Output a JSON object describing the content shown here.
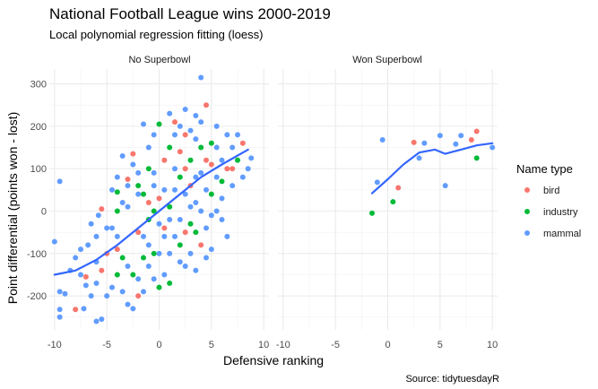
{
  "chart_data": {
    "type": "scatter",
    "title": "National Football League wins 2000-2019",
    "subtitle": "Local polynomial regression fitting (loess)",
    "xlabel": "Defensive ranking",
    "ylabel": "Point differential (points won - lost)",
    "caption": "Source: tidytuesdayR",
    "xlim": [
      -10.5,
      10.5
    ],
    "ylim": [
      -280,
      335
    ],
    "x_ticks": [
      -10,
      -5,
      0,
      5,
      10
    ],
    "y_ticks": [
      -200,
      -100,
      0,
      100,
      200,
      300
    ],
    "grid": true,
    "legend": {
      "title": "Name type",
      "position": "right",
      "entries": [
        {
          "key": "bird",
          "label": "bird",
          "color": "#f8766d"
        },
        {
          "key": "industry",
          "label": "industry",
          "color": "#00ba38"
        },
        {
          "key": "mammal",
          "label": "mammal",
          "color": "#619cff"
        }
      ]
    },
    "trend_color": "#3366ff",
    "facets": [
      {
        "label": "No Superbowl",
        "trend": [
          [
            -10,
            -150
          ],
          [
            -8,
            -140
          ],
          [
            -6,
            -115
          ],
          [
            -4,
            -80
          ],
          [
            -2,
            -40
          ],
          [
            0,
            0
          ],
          [
            2,
            40
          ],
          [
            4,
            80
          ],
          [
            6,
            110
          ],
          [
            8.5,
            145
          ]
        ],
        "points": [
          {
            "x": -9.5,
            "y": 70,
            "g": "mammal"
          },
          {
            "x": -10,
            "y": -72,
            "g": "mammal"
          },
          {
            "x": -9.5,
            "y": -190,
            "g": "mammal"
          },
          {
            "x": -9,
            "y": -195,
            "g": "mammal"
          },
          {
            "x": -9.5,
            "y": -232,
            "g": "mammal"
          },
          {
            "x": -9.5,
            "y": -250,
            "g": "mammal"
          },
          {
            "x": -8,
            "y": -232,
            "g": "bird"
          },
          {
            "x": -7.2,
            "y": -230,
            "g": "mammal"
          },
          {
            "x": -8,
            "y": -110,
            "g": "mammal"
          },
          {
            "x": -7.5,
            "y": -150,
            "g": "mammal"
          },
          {
            "x": -7,
            "y": -175,
            "g": "mammal"
          },
          {
            "x": -6.5,
            "y": -30,
            "g": "mammal"
          },
          {
            "x": -6.8,
            "y": -80,
            "g": "mammal"
          },
          {
            "x": -6,
            "y": -120,
            "g": "mammal"
          },
          {
            "x": -6,
            "y": -260,
            "g": "mammal"
          },
          {
            "x": -5.5,
            "y": -255,
            "g": "mammal"
          },
          {
            "x": -7,
            "y": -155,
            "g": "bird"
          },
          {
            "x": -6,
            "y": -170,
            "g": "mammal"
          },
          {
            "x": -5.5,
            "y": -140,
            "g": "bird"
          },
          {
            "x": -5,
            "y": -100,
            "g": "bird"
          },
          {
            "x": -5.5,
            "y": 5,
            "g": "bird"
          },
          {
            "x": -5.8,
            "y": -10,
            "g": "mammal"
          },
          {
            "x": -4.5,
            "y": 50,
            "g": "mammal"
          },
          {
            "x": -4,
            "y": 45,
            "g": "industry"
          },
          {
            "x": -3.5,
            "y": 20,
            "g": "mammal"
          },
          {
            "x": -3,
            "y": 60,
            "g": "mammal"
          },
          {
            "x": -3,
            "y": 75,
            "g": "bird"
          },
          {
            "x": -2,
            "y": 60,
            "g": "industry"
          },
          {
            "x": -3.5,
            "y": 130,
            "g": "mammal"
          },
          {
            "x": -2.5,
            "y": 135,
            "g": "bird"
          },
          {
            "x": -1.5,
            "y": 205,
            "g": "mammal"
          },
          {
            "x": 0,
            "y": 205,
            "g": "industry"
          },
          {
            "x": -2.5,
            "y": 110,
            "g": "mammal"
          },
          {
            "x": -1,
            "y": 100,
            "g": "industry"
          },
          {
            "x": -2,
            "y": 40,
            "g": "mammal"
          },
          {
            "x": -1.5,
            "y": 40,
            "g": "industry"
          },
          {
            "x": -1,
            "y": 20,
            "g": "bird"
          },
          {
            "x": -0.5,
            "y": 60,
            "g": "mammal"
          },
          {
            "x": -4.5,
            "y": -40,
            "g": "mammal"
          },
          {
            "x": -4,
            "y": -60,
            "g": "mammal"
          },
          {
            "x": -4,
            "y": -90,
            "g": "bird"
          },
          {
            "x": -3.5,
            "y": -110,
            "g": "industry"
          },
          {
            "x": -3,
            "y": -130,
            "g": "mammal"
          },
          {
            "x": -2.5,
            "y": -150,
            "g": "industry"
          },
          {
            "x": -2,
            "y": -160,
            "g": "mammal"
          },
          {
            "x": -2,
            "y": -200,
            "g": "bird"
          },
          {
            "x": -2.5,
            "y": -230,
            "g": "mammal"
          },
          {
            "x": -1.5,
            "y": -110,
            "g": "industry"
          },
          {
            "x": -1,
            "y": -80,
            "g": "mammal"
          },
          {
            "x": -1,
            "y": -20,
            "g": "industry"
          },
          {
            "x": -0.5,
            "y": 0,
            "g": "industry"
          },
          {
            "x": 0,
            "y": -30,
            "g": "mammal"
          },
          {
            "x": 0,
            "y": 30,
            "g": "bird"
          },
          {
            "x": 0.5,
            "y": 50,
            "g": "mammal"
          },
          {
            "x": 0.5,
            "y": -60,
            "g": "mammal"
          },
          {
            "x": 0,
            "y": -100,
            "g": "mammal"
          },
          {
            "x": 0.5,
            "y": -150,
            "g": "mammal"
          },
          {
            "x": 1,
            "y": -170,
            "g": "industry"
          },
          {
            "x": 1,
            "y": -100,
            "g": "mammal"
          },
          {
            "x": 1,
            "y": 10,
            "g": "industry"
          },
          {
            "x": 1.5,
            "y": 50,
            "g": "mammal"
          },
          {
            "x": 1.5,
            "y": 100,
            "g": "mammal"
          },
          {
            "x": 1,
            "y": 150,
            "g": "industry"
          },
          {
            "x": 1.5,
            "y": 180,
            "g": "mammal"
          },
          {
            "x": 2,
            "y": 200,
            "g": "mammal"
          },
          {
            "x": 2,
            "y": 140,
            "g": "bird"
          },
          {
            "x": 2,
            "y": 80,
            "g": "industry"
          },
          {
            "x": 2.5,
            "y": 100,
            "g": "bird"
          },
          {
            "x": 2.5,
            "y": 40,
            "g": "mammal"
          },
          {
            "x": 2,
            "y": -20,
            "g": "mammal"
          },
          {
            "x": 2.5,
            "y": -50,
            "g": "bird"
          },
          {
            "x": 2,
            "y": -80,
            "g": "industry"
          },
          {
            "x": 2.5,
            "y": -130,
            "g": "mammal"
          },
          {
            "x": 3,
            "y": -100,
            "g": "mammal"
          },
          {
            "x": 3,
            "y": 10,
            "g": "mammal"
          },
          {
            "x": 3,
            "y": 60,
            "g": "bird"
          },
          {
            "x": 3,
            "y": 120,
            "g": "industry"
          },
          {
            "x": 3.5,
            "y": 170,
            "g": "mammal"
          },
          {
            "x": 3.5,
            "y": 225,
            "g": "mammal"
          },
          {
            "x": 4,
            "y": 315,
            "g": "mammal"
          },
          {
            "x": 4.5,
            "y": 250,
            "g": "bird"
          },
          {
            "x": 4,
            "y": 210,
            "g": "mammal"
          },
          {
            "x": 4,
            "y": 150,
            "g": "industry"
          },
          {
            "x": 4.5,
            "y": 120,
            "g": "bird"
          },
          {
            "x": 4,
            "y": 90,
            "g": "mammal"
          },
          {
            "x": 4.5,
            "y": 50,
            "g": "mammal"
          },
          {
            "x": 4,
            "y": 0,
            "g": "mammal"
          },
          {
            "x": 4.5,
            "y": -40,
            "g": "mammal"
          },
          {
            "x": 4,
            "y": -80,
            "g": "bird"
          },
          {
            "x": 3.5,
            "y": -50,
            "g": "industry"
          },
          {
            "x": 5,
            "y": -10,
            "g": "mammal"
          },
          {
            "x": 5,
            "y": 40,
            "g": "industry"
          },
          {
            "x": 5.5,
            "y": 80,
            "g": "mammal"
          },
          {
            "x": 5,
            "y": 110,
            "g": "bird"
          },
          {
            "x": 5.5,
            "y": 150,
            "g": "mammal"
          },
          {
            "x": 5.5,
            "y": 200,
            "g": "mammal"
          },
          {
            "x": 6,
            "y": 120,
            "g": "mammal"
          },
          {
            "x": 6,
            "y": 70,
            "g": "industry"
          },
          {
            "x": 6,
            "y": 30,
            "g": "mammal"
          },
          {
            "x": 6.5,
            "y": 100,
            "g": "bird"
          },
          {
            "x": 7,
            "y": 150,
            "g": "mammal"
          },
          {
            "x": 7.5,
            "y": 180,
            "g": "mammal"
          },
          {
            "x": 7.5,
            "y": 120,
            "g": "industry"
          },
          {
            "x": 8,
            "y": 80,
            "g": "mammal"
          },
          {
            "x": 8,
            "y": 160,
            "g": "bird"
          },
          {
            "x": 8.5,
            "y": 100,
            "g": "mammal"
          },
          {
            "x": 8.8,
            "y": 125,
            "g": "mammal"
          },
          {
            "x": 7,
            "y": 100,
            "g": "bird"
          },
          {
            "x": -5,
            "y": -200,
            "g": "mammal"
          },
          {
            "x": -4.5,
            "y": -180,
            "g": "mammal"
          },
          {
            "x": -4,
            "y": -150,
            "g": "industry"
          },
          {
            "x": -3.5,
            "y": -190,
            "g": "mammal"
          },
          {
            "x": -3,
            "y": -220,
            "g": "mammal"
          },
          {
            "x": -1.5,
            "y": -190,
            "g": "mammal"
          },
          {
            "x": -0.5,
            "y": -160,
            "g": "mammal"
          },
          {
            "x": 0,
            "y": -180,
            "g": "industry"
          },
          {
            "x": -1,
            "y": -130,
            "g": "mammal"
          },
          {
            "x": -6.5,
            "y": -200,
            "g": "mammal"
          },
          {
            "x": -7.5,
            "y": -90,
            "g": "mammal"
          },
          {
            "x": -8.5,
            "y": -140,
            "g": "mammal"
          },
          {
            "x": -6,
            "y": -60,
            "g": "mammal"
          },
          {
            "x": -5,
            "y": -40,
            "g": "mammal"
          },
          {
            "x": -4,
            "y": 0,
            "g": "industry"
          },
          {
            "x": -3,
            "y": 10,
            "g": "mammal"
          },
          {
            "x": -2,
            "y": -50,
            "g": "bird"
          },
          {
            "x": -1.5,
            "y": -60,
            "g": "mammal"
          },
          {
            "x": -0.5,
            "y": -100,
            "g": "industry"
          },
          {
            "x": 0.5,
            "y": -40,
            "g": "bird"
          },
          {
            "x": 1,
            "y": -20,
            "g": "mammal"
          },
          {
            "x": 1.5,
            "y": -60,
            "g": "mammal"
          },
          {
            "x": 2,
            "y": -120,
            "g": "mammal"
          },
          {
            "x": 3,
            "y": -30,
            "g": "industry"
          },
          {
            "x": 3.5,
            "y": 20,
            "g": "mammal"
          },
          {
            "x": 3.5,
            "y": 80,
            "g": "mammal"
          },
          {
            "x": 2.5,
            "y": 180,
            "g": "bird"
          },
          {
            "x": 3,
            "y": 190,
            "g": "mammal"
          },
          {
            "x": 1,
            "y": 230,
            "g": "mammal"
          },
          {
            "x": -1,
            "y": 150,
            "g": "mammal"
          },
          {
            "x": 0.5,
            "y": 120,
            "g": "bird"
          },
          {
            "x": -0.5,
            "y": 90,
            "g": "mammal"
          },
          {
            "x": -2,
            "y": 90,
            "g": "mammal"
          },
          {
            "x": -4,
            "y": 80,
            "g": "mammal"
          },
          {
            "x": 5,
            "y": 160,
            "g": "industry"
          },
          {
            "x": 6.5,
            "y": 180,
            "g": "mammal"
          },
          {
            "x": 7,
            "y": 60,
            "g": "mammal"
          },
          {
            "x": 5.5,
            "y": 0,
            "g": "mammal"
          },
          {
            "x": 6,
            "y": -20,
            "g": "mammal"
          },
          {
            "x": 6.5,
            "y": -60,
            "g": "mammal"
          },
          {
            "x": 5,
            "y": -90,
            "g": "mammal"
          },
          {
            "x": 4.5,
            "y": -110,
            "g": "mammal"
          },
          {
            "x": 3.5,
            "y": -140,
            "g": "mammal"
          },
          {
            "x": 2.5,
            "y": 240,
            "g": "mammal"
          },
          {
            "x": -0.5,
            "y": 180,
            "g": "mammal"
          },
          {
            "x": 1.5,
            "y": 210,
            "g": "bird"
          }
        ]
      },
      {
        "label": "Won Superbowl",
        "trend": [
          [
            -1.5,
            42
          ],
          [
            0,
            75
          ],
          [
            1.5,
            110
          ],
          [
            3,
            138
          ],
          [
            4.5,
            145
          ],
          [
            5.5,
            135
          ],
          [
            7,
            145
          ],
          [
            8.5,
            155
          ],
          [
            10,
            160
          ]
        ],
        "points": [
          {
            "x": -0.5,
            "y": 168,
            "g": "mammal"
          },
          {
            "x": -1,
            "y": 68,
            "g": "mammal"
          },
          {
            "x": -1.5,
            "y": -5,
            "g": "industry"
          },
          {
            "x": 0.5,
            "y": 22,
            "g": "industry"
          },
          {
            "x": 1,
            "y": 55,
            "g": "bird"
          },
          {
            "x": 2.5,
            "y": 162,
            "g": "bird"
          },
          {
            "x": 3,
            "y": 125,
            "g": "mammal"
          },
          {
            "x": 3.5,
            "y": 160,
            "g": "mammal"
          },
          {
            "x": 5,
            "y": 178,
            "g": "mammal"
          },
          {
            "x": 5.5,
            "y": 60,
            "g": "mammal"
          },
          {
            "x": 6.5,
            "y": 158,
            "g": "mammal"
          },
          {
            "x": 7,
            "y": 178,
            "g": "mammal"
          },
          {
            "x": 8,
            "y": 168,
            "g": "bird"
          },
          {
            "x": 8.5,
            "y": 188,
            "g": "bird"
          },
          {
            "x": 8.5,
            "y": 125,
            "g": "industry"
          },
          {
            "x": 10,
            "y": 150,
            "g": "mammal"
          }
        ]
      }
    ]
  }
}
